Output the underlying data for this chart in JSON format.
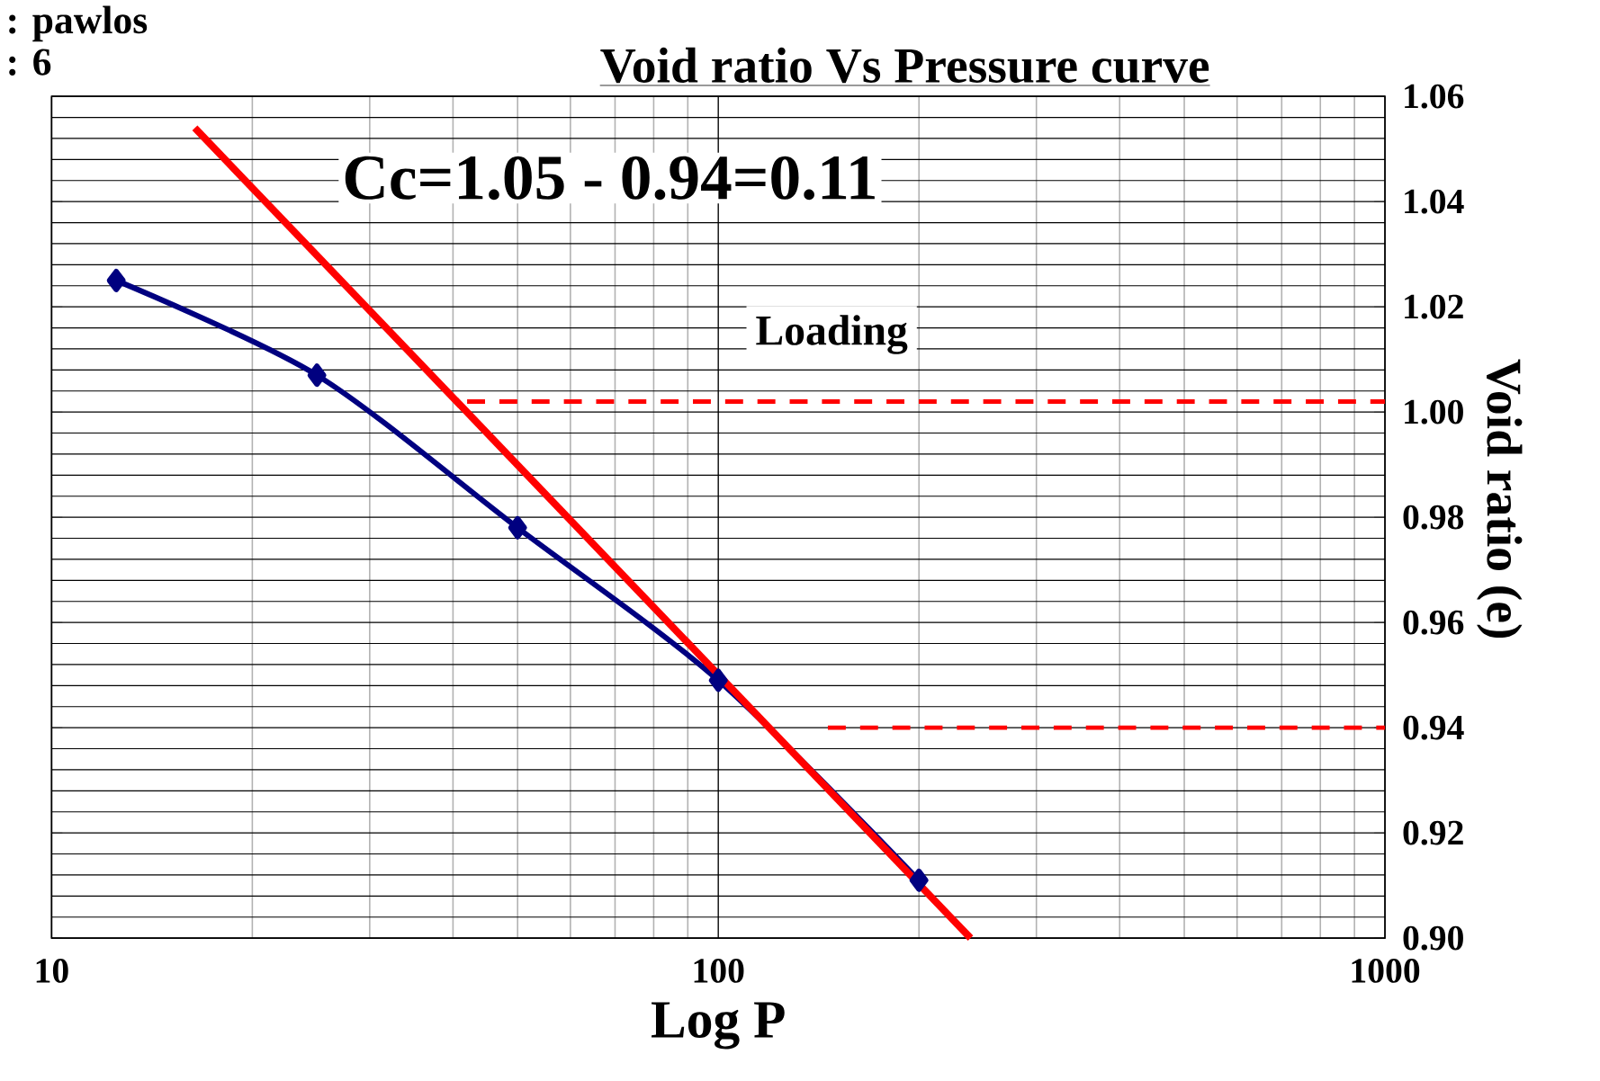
{
  "chart_data": {
    "type": "line",
    "title": "Void ratio Vs Pressure curve",
    "xlabel": "Log P",
    "ylabel": "Void ratio (e)",
    "log": "x",
    "xlim": [
      10,
      1000
    ],
    "xticks": [
      10,
      100,
      1000
    ],
    "ylim": [
      0.9,
      1.06
    ],
    "yticks": [
      {
        "value": 0.9,
        "label": "0.90"
      },
      0.92,
      0.94,
      0.96,
      0.98,
      {
        "value": 1.0,
        "label": "1.00"
      },
      1.02,
      1.04,
      1.06
    ],
    "grid": true,
    "annotations": [
      ": pawlos",
      ": 6",
      "Cc=1.05 - 0.94=0.11",
      "Loading"
    ],
    "series": [
      {
        "color": "#000080",
        "marker": "diamond",
        "line_style": "solid",
        "x": [
          12.5,
          25,
          50,
          100,
          200
        ],
        "values": [
          1.025,
          1.007,
          0.978,
          0.949,
          0.911
        ]
      },
      {
        "color": "#ff0000",
        "marker": "none",
        "line_style": "solid",
        "x": [
          16.4,
          239
        ],
        "values": [
          1.054,
          0.9
        ]
      },
      {
        "color": "#ff0000",
        "marker": "none",
        "line_style": "dashed",
        "x": [
          42,
          1000
        ],
        "values": [
          1.002,
          1.002
        ]
      },
      {
        "color": "#ff0000",
        "marker": "none",
        "line_style": "dashed",
        "x": [
          146,
          1000
        ],
        "values": [
          0.94,
          0.94
        ]
      }
    ]
  }
}
